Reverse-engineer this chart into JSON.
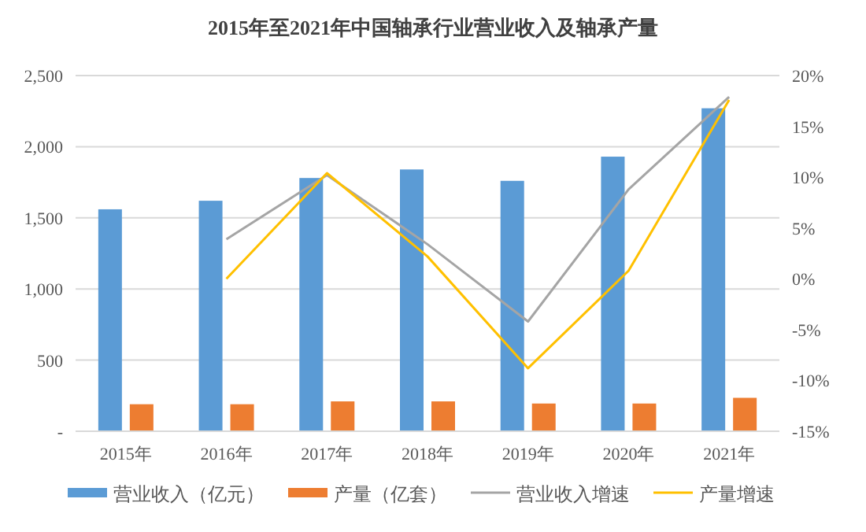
{
  "chart_data": {
    "type": "bar",
    "title": "2015年至2021年中国轴承行业营业收入及轴承产量",
    "categories": [
      "2015年",
      "2016年",
      "2017年",
      "2018年",
      "2019年",
      "2020年",
      "2021年"
    ],
    "series": [
      {
        "name": "营业收入（亿元）",
        "color": "#5b9bd5",
        "values": [
          1560,
          1620,
          1780,
          1840,
          1760,
          1930,
          2270
        ]
      },
      {
        "name": "产量（亿套）",
        "color": "#ed7d31",
        "values": [
          190,
          190,
          210,
          210,
          195,
          195,
          235
        ]
      },
      {
        "name": "营业收入增速",
        "type": "line",
        "axis": "y2",
        "color": "#a5a5a5",
        "values": [
          null,
          3.9,
          10.2,
          3.4,
          -4.2,
          8.8,
          17.9
        ]
      },
      {
        "name": "产量增速",
        "type": "line",
        "axis": "y2",
        "color": "#ffc000",
        "values": [
          null,
          0,
          10.4,
          2.2,
          -8.8,
          0.8,
          17.6
        ]
      }
    ],
    "ylim": [
      0,
      2500
    ],
    "yticks": [
      {
        "value": 0,
        "label": "-"
      },
      500,
      {
        "value": 1000,
        "label": "1,000"
      },
      {
        "value": 1500,
        "label": "1,500"
      },
      {
        "value": 2000,
        "label": "2,000"
      },
      {
        "value": 2500,
        "label": "2,500"
      }
    ],
    "y2lim": [
      -15,
      20
    ],
    "y2ticks": [
      {
        "value": -15,
        "label": "-15%"
      },
      {
        "value": -10,
        "label": "-10%"
      },
      {
        "value": -5,
        "label": "-5%"
      },
      {
        "value": 0,
        "label": "0%"
      },
      {
        "value": 5,
        "label": "5%"
      },
      {
        "value": 10,
        "label": "10%"
      },
      {
        "value": 15,
        "label": "15%"
      },
      {
        "value": 20,
        "label": "20%"
      }
    ],
    "grid": "y",
    "legend": "bottom",
    "marker": "none"
  }
}
